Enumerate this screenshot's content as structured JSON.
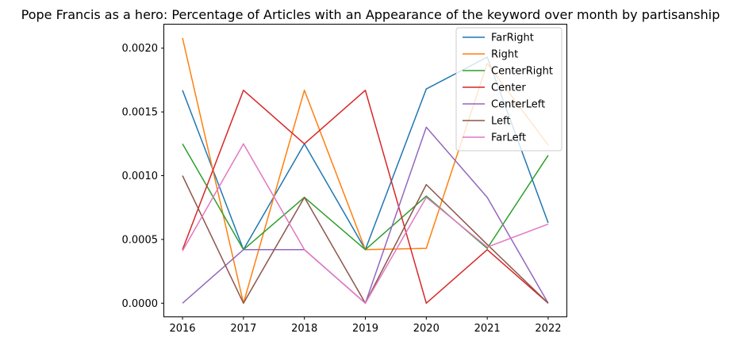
{
  "chart_data": {
    "type": "line",
    "title": "Pope Francis as a hero: Percentage of Articles with an Appearance of the keyword over month by partisanship",
    "xlabel": "",
    "ylabel": "",
    "x": [
      2016,
      2017,
      2018,
      2019,
      2020,
      2021,
      2022
    ],
    "xlim": [
      2015.7,
      2022.3
    ],
    "ylim": [
      -0.000104,
      0.002185
    ],
    "yticks": [
      0.0,
      0.0005,
      0.001,
      0.0015,
      0.002
    ],
    "ytick_labels": [
      "0.0000",
      "0.0005",
      "0.0010",
      "0.0015",
      "0.0020"
    ],
    "xtick_labels": [
      "2016",
      "2017",
      "2018",
      "2019",
      "2020",
      "2021",
      "2022"
    ],
    "grid": false,
    "legend": "top-right",
    "series": [
      {
        "name": "FarRight",
        "color": "#1f77b4",
        "values": [
          0.00167,
          0.00042,
          0.00125,
          0.00042,
          0.00168,
          0.00193,
          0.00063
        ]
      },
      {
        "name": "Right",
        "color": "#ff7f0e",
        "values": [
          0.00208,
          0.0,
          0.00167,
          0.00042,
          0.00043,
          0.00188,
          0.00124
        ]
      },
      {
        "name": "CenterRight",
        "color": "#2ca02c",
        "values": [
          0.00125,
          0.00042,
          0.00083,
          0.00042,
          0.00084,
          0.00043,
          0.00116
        ]
      },
      {
        "name": "Center",
        "color": "#d62728",
        "values": [
          0.00042,
          0.00167,
          0.00125,
          0.00167,
          0.0,
          0.00042,
          0.0
        ]
      },
      {
        "name": "CenterLeft",
        "color": "#9467bd",
        "values": [
          0.0,
          0.00042,
          0.00042,
          0.0,
          0.00138,
          0.00083,
          0.0
        ]
      },
      {
        "name": "Left",
        "color": "#8c564b",
        "values": [
          0.001,
          0.0,
          0.00083,
          0.0,
          0.00093,
          0.00046,
          0.0
        ]
      },
      {
        "name": "FarLeft",
        "color": "#e377c2",
        "values": [
          0.00041,
          0.00125,
          0.00042,
          0.0,
          0.00083,
          0.00044,
          0.00062
        ]
      }
    ]
  }
}
